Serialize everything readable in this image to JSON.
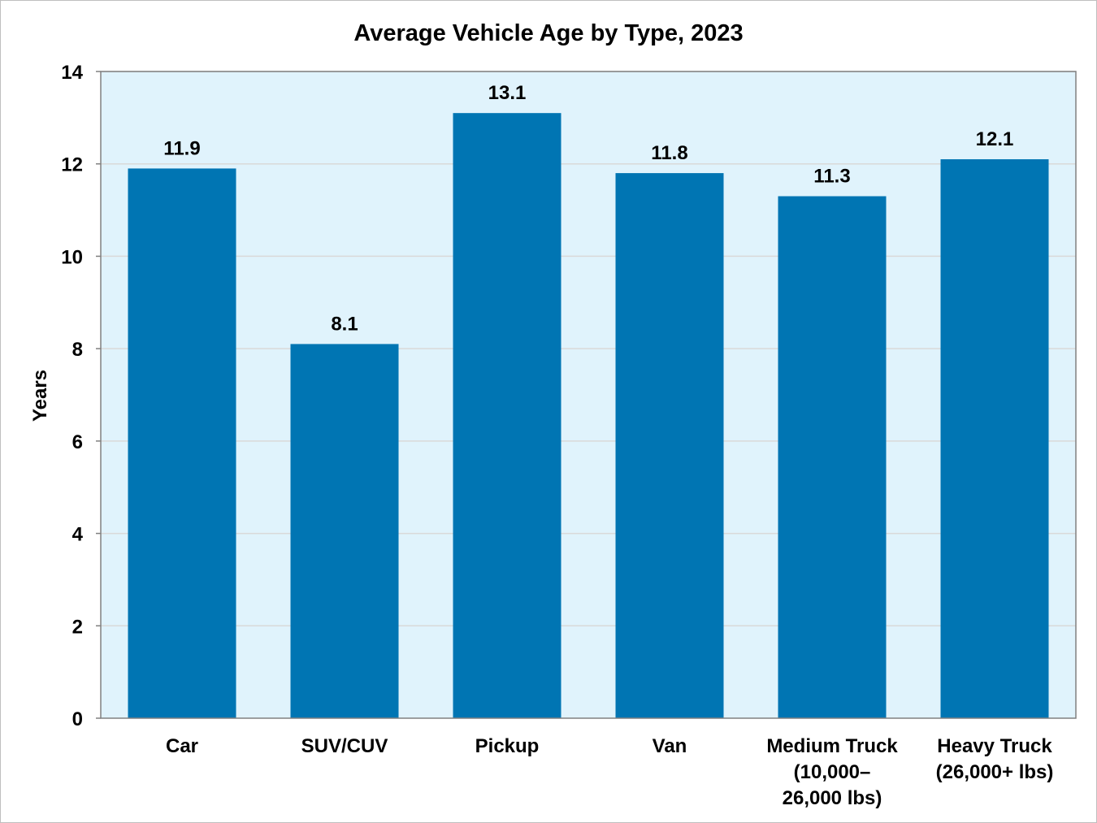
{
  "chart_data": {
    "type": "bar",
    "title": "Average Vehicle Age by Type, 2023",
    "xlabel": "",
    "ylabel": "Years",
    "ylim": [
      0,
      14
    ],
    "yticks": [
      0,
      2,
      4,
      6,
      8,
      10,
      12,
      14
    ],
    "grid": true,
    "categories": [
      [
        "Car"
      ],
      [
        "SUV/CUV"
      ],
      [
        "Pickup"
      ],
      [
        "Van"
      ],
      [
        "Medium Truck",
        "(10,000–",
        "26,000 lbs)"
      ],
      [
        "Heavy Truck",
        "(26,000+ lbs)"
      ]
    ],
    "values": [
      11.9,
      8.1,
      13.1,
      11.8,
      11.3,
      12.1
    ],
    "data_labels": [
      "11.9",
      "8.1",
      "13.1",
      "11.8",
      "11.3",
      "12.1"
    ],
    "colors": {
      "bar": "#0075B3",
      "plot_background": "#E0F3FC",
      "grid": "#D9D9D9",
      "axis": "#808080"
    }
  }
}
